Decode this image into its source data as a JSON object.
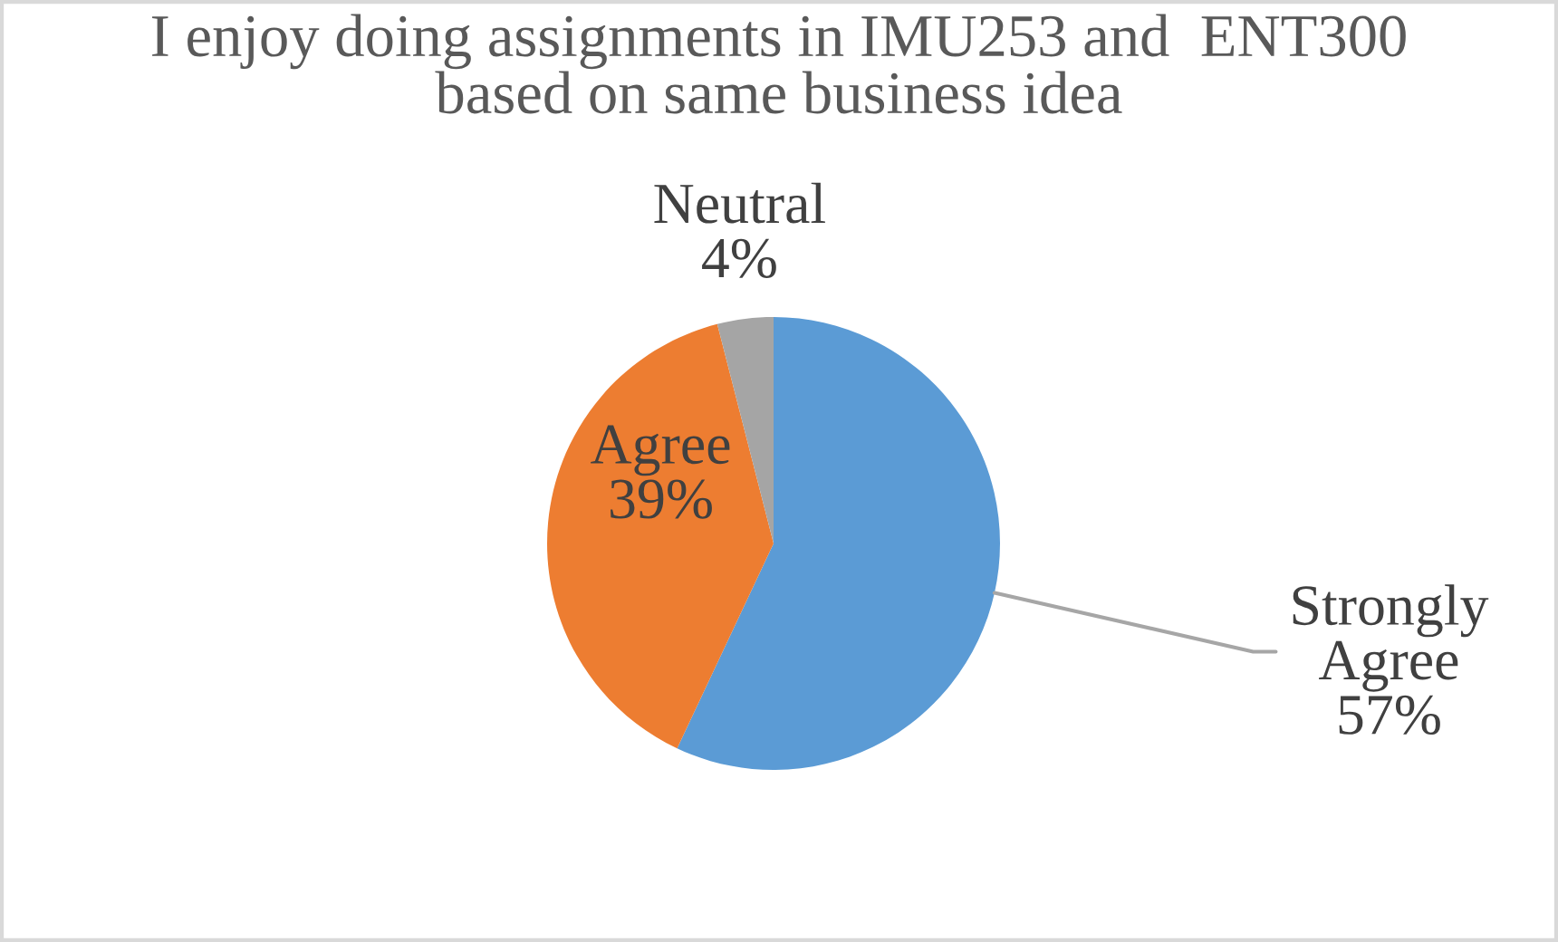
{
  "chart_data": {
    "type": "pie",
    "title": "I enjoy doing assignments in IMU253 and  ENT300 based on same business idea",
    "categories": [
      "Strongly Agree",
      "Agree",
      "Neutral"
    ],
    "values": [
      57,
      39,
      4
    ],
    "value_labels": [
      "57%",
      "39%",
      "4%"
    ],
    "colors": [
      "#5b9bd5",
      "#ed7d31",
      "#a5a5a5"
    ]
  }
}
